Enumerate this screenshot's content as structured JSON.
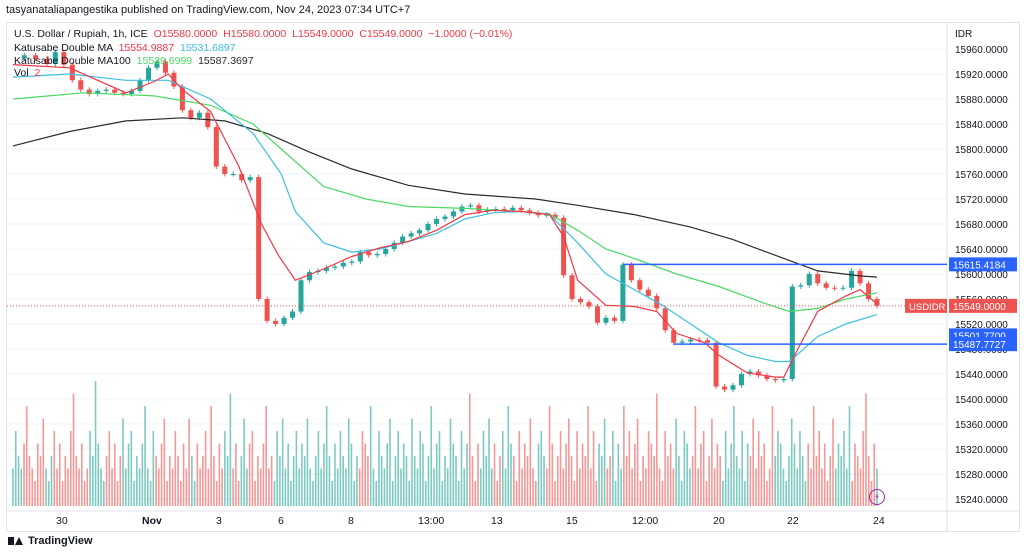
{
  "header": {
    "published": "tasyanataliapangestika published on TradingView.com, Nov 24, 2023 07:34 UTC+7"
  },
  "legend": {
    "symbol": "U.S. Dollar / Rupiah, 1h, ICE",
    "ohlc": {
      "o": "O15580.0000",
      "h": "H15580.0000",
      "l": "L15549.0000",
      "c": "C15549.0000",
      "chg": "−1.0000 (−0.01%)"
    },
    "ind1_name": "Katusabe Double MA",
    "ind1_v1": "15554.9887",
    "ind1_v2": "15531.6897",
    "ind2_name": "Katusabe Double MA100",
    "ind2_v1": "15539.6999",
    "ind2_v2": "15587.3697",
    "vol_name": "Vol",
    "vol_value": "2"
  },
  "colors": {
    "up": "#26a69a",
    "down": "#ef5350",
    "ma_red": "#f23645",
    "ma_cyan": "#3fbfdf",
    "ma_green": "#4cd964",
    "ma_black": "#2b2b2b",
    "hline": "#2962ff",
    "grid": "#f0f3fa"
  },
  "footer": {
    "brand": "TradingView",
    "bolt_icon": "lightning-icon"
  },
  "chart_data": {
    "type": "candlestick",
    "currency": "IDR",
    "ylim": [
      15220,
      15980
    ],
    "y_ticks": [
      "15960.0000",
      "15920.0000",
      "15880.0000",
      "15840.0000",
      "15800.0000",
      "15760.0000",
      "15720.0000",
      "15680.0000",
      "15640.0000",
      "15600.0000",
      "15560.0000",
      "15520.0000",
      "15480.0000",
      "15440.0000",
      "15400.0000",
      "15360.0000",
      "15320.0000",
      "15280.0000",
      "15240.0000"
    ],
    "x_ticks": [
      "30",
      "Nov",
      "3",
      "6",
      "8",
      "13:00",
      "13",
      "15",
      "12:00",
      "20",
      "22",
      "24"
    ],
    "price_labels": [
      {
        "text": "15615.4184",
        "value": 15615.4184,
        "color": "#2962ff"
      },
      {
        "text": "15501.7700",
        "value": 15501.77,
        "color": "#2962ff"
      },
      {
        "text": "15487.7727",
        "value": 15487.7727,
        "color": "#2962ff"
      },
      {
        "text": "15549.0000",
        "value": 15549.0,
        "color": "#ef5350",
        "tag": "USDIDR"
      }
    ],
    "horizontal_lines": [
      15615.4184,
      15487.7727
    ],
    "close_points": [
      [
        0,
        15945
      ],
      [
        4,
        15950
      ],
      [
        8,
        15944
      ],
      [
        12,
        15936
      ],
      [
        15,
        15955
      ],
      [
        18,
        15935
      ],
      [
        21,
        15910
      ],
      [
        24,
        15895
      ],
      [
        27,
        15888
      ],
      [
        30,
        15893
      ],
      [
        33,
        15895
      ],
      [
        36,
        15890
      ],
      [
        39,
        15888
      ],
      [
        42,
        15893
      ],
      [
        45,
        15910
      ],
      [
        48,
        15930
      ],
      [
        51,
        15940
      ],
      [
        54,
        15922
      ],
      [
        57,
        15900
      ],
      [
        60,
        15862
      ],
      [
        63,
        15850
      ],
      [
        66,
        15858
      ],
      [
        69,
        15835
      ],
      [
        72,
        15772
      ],
      [
        75,
        15760
      ],
      [
        78,
        15760
      ],
      [
        81,
        15750
      ],
      [
        84,
        15755
      ],
      [
        87,
        15560
      ],
      [
        90,
        15525
      ],
      [
        93,
        15520
      ],
      [
        96,
        15530
      ],
      [
        99,
        15540
      ],
      [
        102,
        15590
      ],
      [
        105,
        15603
      ],
      [
        108,
        15605
      ],
      [
        111,
        15610
      ],
      [
        114,
        15612
      ],
      [
        117,
        15618
      ],
      [
        120,
        15620
      ],
      [
        123,
        15635
      ],
      [
        126,
        15630
      ],
      [
        129,
        15632
      ],
      [
        132,
        15640
      ],
      [
        135,
        15650
      ],
      [
        138,
        15660
      ],
      [
        141,
        15665
      ],
      [
        144,
        15670
      ],
      [
        147,
        15680
      ],
      [
        150,
        15688
      ],
      [
        153,
        15692
      ],
      [
        156,
        15700
      ],
      [
        159,
        15708
      ],
      [
        162,
        15710
      ],
      [
        165,
        15700
      ],
      [
        168,
        15703
      ],
      [
        171,
        15704
      ],
      [
        174,
        15702
      ],
      [
        177,
        15706
      ],
      [
        180,
        15702
      ],
      [
        183,
        15698
      ],
      [
        186,
        15694
      ],
      [
        189,
        15695
      ],
      [
        192,
        15690
      ],
      [
        195,
        15598
      ],
      [
        198,
        15560
      ],
      [
        201,
        15555
      ],
      [
        204,
        15548
      ],
      [
        207,
        15522
      ],
      [
        210,
        15530
      ],
      [
        213,
        15525
      ],
      [
        216,
        15615
      ],
      [
        219,
        15590
      ],
      [
        222,
        15575
      ],
      [
        225,
        15565
      ],
      [
        228,
        15545
      ],
      [
        231,
        15510
      ],
      [
        234,
        15490
      ],
      [
        237,
        15492
      ],
      [
        240,
        15495
      ],
      [
        243,
        15494
      ],
      [
        246,
        15490
      ],
      [
        249,
        15420
      ],
      [
        252,
        15415
      ],
      [
        255,
        15422
      ],
      [
        258,
        15440
      ],
      [
        261,
        15444
      ],
      [
        264,
        15438
      ],
      [
        267,
        15432
      ],
      [
        270,
        15430
      ],
      [
        273,
        15432
      ],
      [
        276,
        15580
      ],
      [
        279,
        15582
      ],
      [
        282,
        15600
      ],
      [
        285,
        15585
      ],
      [
        288,
        15578
      ],
      [
        291,
        15577
      ],
      [
        294,
        15578
      ],
      [
        297,
        15605
      ],
      [
        300,
        15585
      ],
      [
        303,
        15560
      ],
      [
        306,
        15549
      ]
    ],
    "ma_red": [
      [
        0,
        15935
      ],
      [
        20,
        15930
      ],
      [
        40,
        15890
      ],
      [
        50,
        15908
      ],
      [
        55,
        15920
      ],
      [
        60,
        15895
      ],
      [
        70,
        15860
      ],
      [
        80,
        15772
      ],
      [
        88,
        15680
      ],
      [
        94,
        15630
      ],
      [
        100,
        15590
      ],
      [
        110,
        15608
      ],
      [
        120,
        15628
      ],
      [
        130,
        15642
      ],
      [
        140,
        15652
      ],
      [
        150,
        15670
      ],
      [
        160,
        15695
      ],
      [
        170,
        15702
      ],
      [
        180,
        15700
      ],
      [
        190,
        15695
      ],
      [
        195,
        15660
      ],
      [
        200,
        15590
      ],
      [
        210,
        15550
      ],
      [
        220,
        15548
      ],
      [
        228,
        15540
      ],
      [
        235,
        15505
      ],
      [
        245,
        15490
      ],
      [
        250,
        15470
      ],
      [
        260,
        15442
      ],
      [
        270,
        15435
      ],
      [
        273,
        15435
      ],
      [
        278,
        15480
      ],
      [
        285,
        15540
      ],
      [
        295,
        15565
      ],
      [
        300,
        15575
      ],
      [
        306,
        15552
      ]
    ],
    "ma_cyan": [
      [
        0,
        15915
      ],
      [
        20,
        15920
      ],
      [
        40,
        15910
      ],
      [
        55,
        15910
      ],
      [
        70,
        15880
      ],
      [
        85,
        15825
      ],
      [
        95,
        15760
      ],
      [
        100,
        15700
      ],
      [
        110,
        15650
      ],
      [
        120,
        15635
      ],
      [
        130,
        15640
      ],
      [
        140,
        15652
      ],
      [
        150,
        15665
      ],
      [
        160,
        15688
      ],
      [
        170,
        15698
      ],
      [
        180,
        15700
      ],
      [
        190,
        15695
      ],
      [
        200,
        15650
      ],
      [
        210,
        15600
      ],
      [
        220,
        15575
      ],
      [
        230,
        15550
      ],
      [
        240,
        15520
      ],
      [
        250,
        15490
      ],
      [
        260,
        15470
      ],
      [
        270,
        15460
      ],
      [
        275,
        15460
      ],
      [
        285,
        15500
      ],
      [
        295,
        15520
      ],
      [
        306,
        15535
      ]
    ],
    "ma_green": [
      [
        0,
        15880
      ],
      [
        25,
        15890
      ],
      [
        50,
        15885
      ],
      [
        70,
        15870
      ],
      [
        85,
        15840
      ],
      [
        95,
        15800
      ],
      [
        110,
        15740
      ],
      [
        125,
        15720
      ],
      [
        140,
        15708
      ],
      [
        160,
        15705
      ],
      [
        180,
        15700
      ],
      [
        190,
        15696
      ],
      [
        200,
        15670
      ],
      [
        210,
        15640
      ],
      [
        220,
        15625
      ],
      [
        235,
        15600
      ],
      [
        250,
        15580
      ],
      [
        265,
        15555
      ],
      [
        275,
        15540
      ],
      [
        285,
        15545
      ],
      [
        295,
        15560
      ],
      [
        306,
        15570
      ]
    ],
    "ma_black": [
      [
        0,
        15805
      ],
      [
        20,
        15828
      ],
      [
        40,
        15845
      ],
      [
        60,
        15850
      ],
      [
        75,
        15845
      ],
      [
        90,
        15825
      ],
      [
        105,
        15795
      ],
      [
        120,
        15768
      ],
      [
        140,
        15742
      ],
      [
        160,
        15728
      ],
      [
        185,
        15720
      ],
      [
        200,
        15710
      ],
      [
        220,
        15695
      ],
      [
        240,
        15675
      ],
      [
        255,
        15655
      ],
      [
        270,
        15630
      ],
      [
        285,
        15605
      ],
      [
        300,
        15597
      ],
      [
        306,
        15595
      ]
    ],
    "volume": [
      3,
      6,
      4,
      3,
      5,
      8,
      4,
      3,
      2,
      5,
      4,
      7,
      3,
      2,
      4,
      6,
      3,
      5,
      2,
      4,
      3,
      6,
      9,
      4,
      3,
      5,
      2,
      3,
      6,
      4,
      10,
      5,
      3,
      2,
      4,
      6,
      3,
      5,
      2,
      4,
      7,
      3,
      5,
      6,
      2,
      4,
      3,
      5,
      8,
      3,
      2,
      6,
      4,
      3,
      5,
      7,
      2,
      4,
      3,
      6,
      4,
      2,
      5,
      3,
      7,
      4,
      2,
      5,
      3,
      4,
      6,
      3,
      8,
      4,
      2,
      5,
      3,
      6,
      4,
      9,
      3,
      5,
      2,
      4,
      7,
      3,
      5,
      6,
      2,
      4,
      3,
      5,
      8,
      3,
      4,
      2,
      6,
      4,
      7,
      3,
      5,
      2,
      4,
      6,
      3,
      5,
      4,
      7,
      3,
      2,
      4,
      6,
      3,
      5,
      8,
      4,
      2,
      5,
      3,
      6,
      4,
      3,
      7,
      5,
      2,
      4,
      3,
      6,
      5,
      4,
      8,
      3,
      2,
      6,
      4,
      3,
      5,
      7,
      2,
      4,
      6,
      3,
      5,
      4,
      2,
      7,
      4,
      3,
      6,
      5,
      2,
      4,
      8,
      3,
      5,
      6,
      2,
      4,
      3,
      7,
      5,
      4,
      2,
      6,
      3,
      5,
      9,
      4,
      2,
      5,
      3,
      6,
      4,
      7,
      3,
      5,
      2,
      4,
      6,
      3,
      8,
      5,
      4,
      2,
      6,
      3,
      5,
      4,
      7,
      3,
      2,
      5,
      6,
      4,
      3,
      8,
      5,
      2,
      4,
      6,
      3,
      5,
      7,
      4,
      2,
      6,
      3,
      5,
      4,
      8,
      3,
      6,
      2,
      5,
      4,
      7,
      3,
      4,
      6,
      2,
      5,
      3,
      8,
      4,
      6,
      3,
      5,
      7,
      2,
      4,
      3,
      6,
      5,
      4,
      9,
      3,
      2,
      6,
      4,
      5,
      3,
      7,
      4,
      2,
      6,
      5,
      3,
      4,
      8,
      3,
      5,
      6,
      2,
      4,
      7,
      3,
      5,
      4,
      2,
      6,
      3,
      5,
      8,
      4,
      3,
      6,
      2,
      5,
      4,
      7,
      3,
      6,
      4,
      5,
      2,
      3,
      8,
      4,
      6,
      5,
      3,
      2,
      4,
      7,
      5,
      3,
      6,
      4,
      2,
      5,
      3,
      8,
      4,
      6,
      3,
      5,
      2,
      4,
      7,
      3,
      5,
      4,
      6,
      3,
      8,
      2,
      5,
      4,
      3,
      6,
      9,
      4,
      2,
      5,
      3
    ]
  }
}
